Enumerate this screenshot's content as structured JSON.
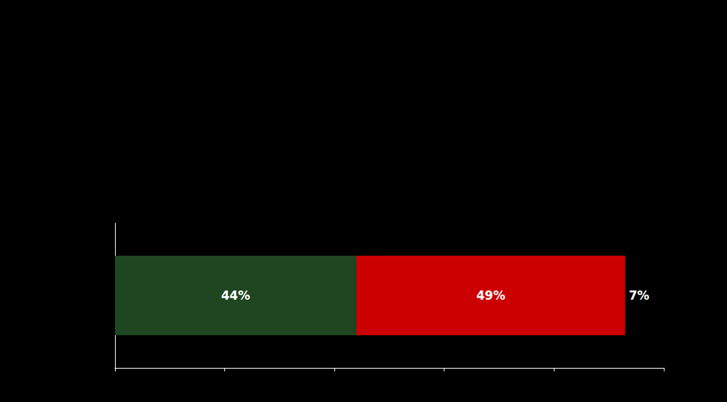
{
  "chart_data": {
    "type": "bar",
    "orientation": "horizontal",
    "stacked": true,
    "categories": [
      null
    ],
    "series": [
      {
        "color": "#1e4620",
        "values": [
          44
        ],
        "value_labels": [
          "44%"
        ]
      },
      {
        "color": "#cc0000",
        "values": [
          49
        ],
        "value_labels": [
          "49%"
        ]
      },
      {
        "color": "#000000",
        "values": [
          7
        ],
        "value_labels": [
          "7%"
        ]
      }
    ],
    "data_labels": true,
    "xlim": [
      0,
      100
    ],
    "xticks": [
      0,
      20,
      40,
      60,
      80,
      100
    ],
    "tick_labels": false,
    "grid": false
  }
}
